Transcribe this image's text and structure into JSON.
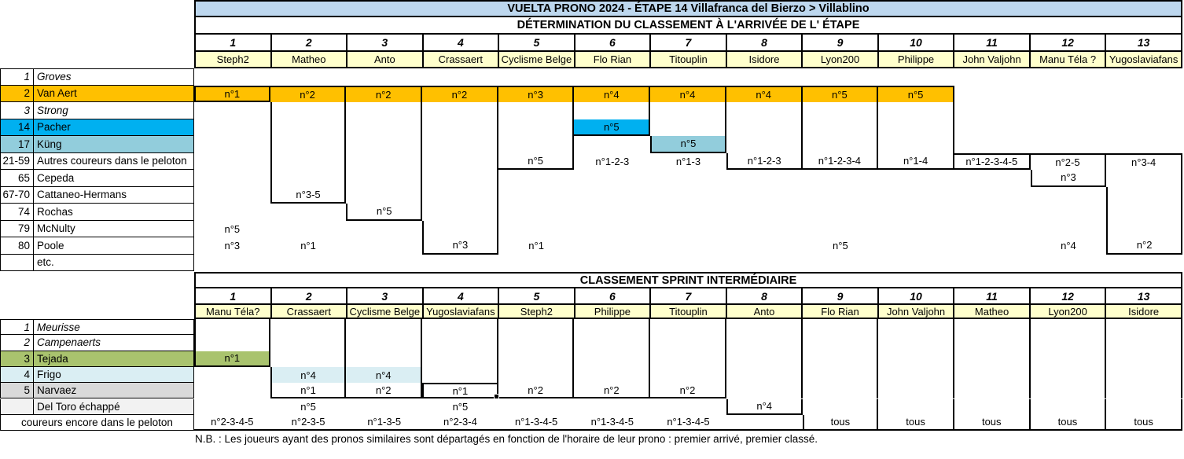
{
  "colors": {
    "headerblue": "#BDD7EE",
    "yellow": "#FFFFCC",
    "orange": "#FFC000",
    "blue": "#00B0F0",
    "lightblue": "#92CDDC",
    "green": "#A9C36E",
    "paleblue": "#DAEEF3",
    "gray": "#D9D9D9",
    "offwhite": "#F2F2F2"
  },
  "top": {
    "title": "VUELTA PRONO 2024  - ÉTAPE 14 Villafranca del Bierzo > Villablino",
    "subtitle": "DÉTERMINATION DU CLASSEMENT À L'ARRIVÉE DE L' ÉTAPE",
    "numbers": [
      "1",
      "2",
      "3",
      "4",
      "5",
      "6",
      "7",
      "8",
      "9",
      "10",
      "11",
      "12",
      "13"
    ],
    "players": [
      "Steph2",
      "Matheo",
      "Anto",
      "Crassaert",
      "Cyclisme Belge",
      "Flo Rian",
      "Titouplin",
      "Isidore",
      "Lyon200",
      "Philippe",
      "John Valjohn",
      "Manu Téla ?",
      "Yugoslaviafans"
    ],
    "rows": [
      {
        "rank": "1",
        "rider": "Groves",
        "italic": true,
        "cells": []
      },
      {
        "rank": "2",
        "rider": "Van Aert",
        "labelBg": "orange",
        "cells": [
          "n°1",
          "n°2",
          "n°2",
          "n°2",
          "n°3",
          "n°4",
          "n°4",
          "n°4",
          "n°5",
          "n°5",
          "",
          "",
          ""
        ],
        "bgs": {
          "0": "orange",
          "1": "orange",
          "2": "orange",
          "3": "orange",
          "4": "orange",
          "5": "orange",
          "6": "orange",
          "7": "orange",
          "8": "orange",
          "9": "orange"
        }
      },
      {
        "rank": "3",
        "rider": "Strong",
        "italic": true,
        "cells": []
      },
      {
        "rank": "14",
        "rider": "Pacher",
        "labelBg": "blue",
        "cells": [
          "",
          "",
          "",
          "",
          "",
          "n°5",
          "",
          "",
          "",
          "",
          "",
          "",
          ""
        ],
        "bgs": {
          "5": "blue"
        }
      },
      {
        "rank": "17",
        "rider": "Küng",
        "labelBg": "lightblue",
        "cells": [
          "",
          "",
          "",
          "",
          "",
          "",
          "n°5",
          "",
          "",
          "",
          "",
          "",
          ""
        ],
        "bgs": {
          "6": "lightblue"
        }
      },
      {
        "rank": "21-59",
        "rider": "Autres coureurs dans le peloton",
        "cells": [
          "",
          "",
          "",
          "",
          "n°5",
          "n°1-2-3",
          "n°1-3",
          "n°1-2-3",
          "n°1-2-3-4",
          "n°1-4",
          "n°1-2-3-4-5",
          "n°2-5",
          "n°3-4"
        ]
      },
      {
        "rank": "65",
        "rider": "Cepeda",
        "cells": [
          "",
          "",
          "",
          "",
          "",
          "",
          "",
          "",
          "",
          "",
          "",
          "n°3",
          ""
        ]
      },
      {
        "rank": "67-70",
        "rider": "Cattaneo-Hermans",
        "cells": [
          "",
          "n°3-5",
          "",
          "",
          "",
          "",
          "",
          "",
          "",
          "",
          "",
          "",
          ""
        ]
      },
      {
        "rank": "74",
        "rider": "Rochas",
        "cells": [
          "",
          "",
          "n°5",
          "",
          "",
          "",
          "",
          "",
          "",
          "",
          "",
          "",
          ""
        ]
      },
      {
        "rank": "79",
        "rider": "McNulty",
        "cells": [
          "n°5",
          "",
          "",
          "",
          "",
          "",
          "",
          "",
          "",
          "",
          "",
          "",
          ""
        ]
      },
      {
        "rank": "80",
        "rider": "Poole",
        "cells": [
          "n°3",
          "n°1",
          "",
          "n°3",
          "n°1",
          "",
          "",
          "",
          "n°5",
          "",
          "",
          "n°4",
          "n°2"
        ]
      },
      {
        "rank": "",
        "rider": "etc.",
        "cells": []
      }
    ],
    "boxes": [
      [
        1,
        1
      ],
      [
        1,
        7
      ],
      [
        1,
        8
      ],
      [
        1,
        10
      ],
      [
        1,
        5
      ],
      [
        1,
        3
      ],
      [
        1,
        4
      ],
      [
        1,
        5
      ],
      [
        1,
        5
      ],
      [
        1,
        5
      ],
      [
        5,
        5
      ],
      [
        5,
        6
      ],
      [
        5,
        10
      ]
    ]
  },
  "bottom": {
    "subtitle": "CLASSEMENT SPRINT INTERMÉDIAIRE",
    "numbers": [
      "1",
      "2",
      "3",
      "4",
      "5",
      "6",
      "7",
      "8",
      "9",
      "10",
      "11",
      "12",
      "13"
    ],
    "players": [
      "Manu Téla?",
      "Crassaert",
      "Cyclisme Belge",
      "Yugoslaviafans",
      "Steph2",
      "Philippe",
      "Titouplin",
      "Anto",
      "Flo Rian",
      "John Valjohn",
      "Matheo",
      "Lyon200",
      "Isidore"
    ],
    "rows": [
      {
        "rank": "1",
        "rider": "Meurisse",
        "italic": true,
        "cells": []
      },
      {
        "rank": "2",
        "rider": "Campenaerts",
        "italic": true,
        "cells": []
      },
      {
        "rank": "3",
        "rider": "Tejada",
        "labelBg": "green",
        "cells": [
          "n°1",
          "",
          "",
          "",
          "",
          "",
          "",
          "",
          "",
          "",
          "",
          "",
          ""
        ],
        "bgs": {
          "0": "green"
        }
      },
      {
        "rank": "4",
        "rider": "Frigo",
        "labelBg": "paleblue",
        "cells": [
          "",
          "n°4",
          "n°4",
          "",
          "",
          "",
          "",
          "",
          "",
          "",
          "",
          "",
          ""
        ],
        "bgs": {
          "1": "paleblue",
          "2": "paleblue"
        }
      },
      {
        "rank": "5",
        "rider": "Narvaez",
        "labelBg": "gray",
        "cells": [
          "",
          "n°1",
          "n°2",
          "n°1",
          "n°2",
          "n°2",
          "n°2",
          "",
          "",
          "",
          "",
          "",
          ""
        ]
      },
      {
        "rank": "",
        "rider": "Del Toro échappé",
        "labelBg": "offwhite",
        "cells": [
          "",
          "n°5",
          "",
          "n°5",
          "",
          "",
          "",
          "n°4",
          "",
          "",
          "",
          "",
          ""
        ]
      },
      {
        "rank": "",
        "rider": "coureurs encore dans le peloton",
        "spanLabel": true,
        "cells": [
          "n°2-3-4-5",
          "n°2-3-5",
          "n°1-3-5",
          "n°2-3-4",
          "n°1-3-4-5",
          "n°1-3-4-5",
          "n°1-3-4-5",
          "",
          "tous",
          "tous",
          "tous",
          "tous",
          "tous"
        ]
      }
    ],
    "boxes": [
      [
        0,
        2
      ],
      [
        0,
        4
      ],
      [
        0,
        4
      ],
      [
        0,
        4
      ],
      [
        0,
        4
      ],
      [
        0,
        4
      ],
      [
        0,
        4
      ],
      [
        0,
        5
      ],
      [
        0,
        6
      ],
      [
        0,
        6
      ],
      [
        0,
        6
      ],
      [
        0,
        6
      ],
      [
        0,
        6
      ]
    ],
    "selected": {
      "row": 4,
      "col": 3
    }
  },
  "footnote": "N.B. : Les joueurs ayant des pronos similaires sont départagés en fonction de l'horaire de leur prono : premier arrivé, premier classé."
}
